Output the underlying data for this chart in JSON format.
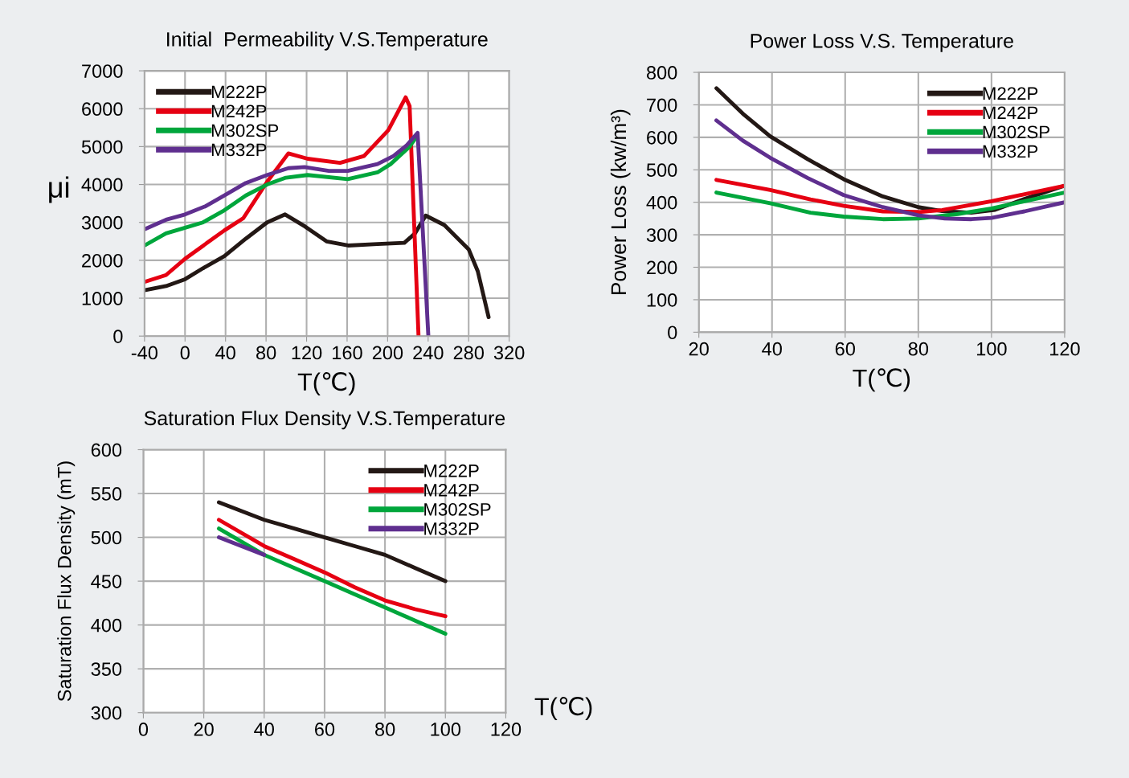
{
  "chart_data": [
    {
      "type": "line",
      "title": "Initial  Permeability V.S.Temperature",
      "xlabel": "T(℃)",
      "ylabel": "μi",
      "xlim": [
        -40,
        320
      ],
      "xticks": [
        -40,
        0,
        40,
        80,
        120,
        160,
        200,
        240,
        280,
        320
      ],
      "ylim": [
        0,
        7000
      ],
      "yticks": [
        0,
        1000,
        2000,
        3000,
        4000,
        5000,
        6000,
        7000
      ],
      "grid": true,
      "legend": "top left",
      "series": [
        {
          "name": "M222P",
          "color": "#231815",
          "x": [
            -40,
            -18.8,
            0,
            17.7,
            38.9,
            60,
            81,
            98.8,
            118.6,
            139.7,
            161,
            190,
            216.5,
            227,
            237.6,
            256,
            280,
            289,
            299.7
          ],
          "values": [
            1210,
            1320,
            1500,
            1790,
            2110,
            2570,
            3000,
            3210,
            2890,
            2500,
            2390,
            2430,
            2460,
            2710,
            3180,
            2930,
            2290,
            1710,
            500
          ]
        },
        {
          "name": "M242P",
          "color": "#e60012",
          "x": [
            -40,
            -18.8,
            0,
            38.9,
            57.5,
            81,
            102,
            121,
            153,
            176.7,
            200.6,
            217.8,
            221.7,
            230.5
          ],
          "values": [
            1430,
            1610,
            2040,
            2790,
            3110,
            4070,
            4820,
            4680,
            4570,
            4750,
            5430,
            6300,
            6070,
            0
          ]
        },
        {
          "name": "M302SP",
          "color": "#00a63c",
          "x": [
            -40,
            -18.8,
            0,
            17.7,
            38.9,
            60,
            81,
            99.6,
            121,
            160.6,
            190,
            203,
            221.7,
            228.3
          ],
          "values": [
            2390,
            2710,
            2860,
            3000,
            3320,
            3710,
            4000,
            4180,
            4250,
            4140,
            4320,
            4540,
            5000,
            5250
          ]
        },
        {
          "name": "M332P",
          "color": "#5f2f8f",
          "x": [
            -40,
            -18.8,
            0,
            20.5,
            38.9,
            60,
            81,
            102,
            118,
            142,
            160.6,
            190,
            205.8,
            219,
            229.6,
            240.2
          ],
          "values": [
            2820,
            3070,
            3210,
            3430,
            3710,
            4040,
            4250,
            4430,
            4460,
            4360,
            4360,
            4540,
            4750,
            5040,
            5360,
            0
          ]
        }
      ]
    },
    {
      "type": "line",
      "title": "Power Loss V.S. Temperature",
      "xlabel": "T(℃)",
      "ylabel": "Power Loss (kw/m³)",
      "xlim": [
        20,
        120
      ],
      "xticks": [
        20,
        40,
        60,
        80,
        100,
        120
      ],
      "ylim": [
        0,
        800
      ],
      "yticks": [
        0,
        100,
        200,
        300,
        400,
        500,
        600,
        700,
        800
      ],
      "grid": true,
      "legend": "top right",
      "series": [
        {
          "name": "M222P",
          "color": "#231815",
          "x": [
            24.8,
            32,
            39.5,
            49.7,
            59.6,
            70.3,
            80,
            86.5,
            94.5,
            101,
            109,
            120
          ],
          "values": [
            751,
            673,
            603,
            533,
            471,
            418,
            385,
            373,
            368,
            377,
            410,
            451
          ]
        },
        {
          "name": "M242P",
          "color": "#e60012",
          "x": [
            24.8,
            39.5,
            50.5,
            59.6,
            70.3,
            80,
            86.5,
            100,
            120
          ],
          "values": [
            469,
            438,
            409,
            389,
            372,
            370,
            376,
            403,
            451
          ]
        },
        {
          "name": "M302SP",
          "color": "#00a63c",
          "x": [
            24.8,
            39.5,
            50.5,
            59.6,
            70.3,
            80,
            90.8,
            100,
            120
          ],
          "values": [
            430,
            397,
            368,
            356,
            348,
            350,
            364,
            381,
            430
          ]
        },
        {
          "name": "M332P",
          "color": "#5f2f8f",
          "x": [
            24.8,
            32,
            39.5,
            49.7,
            59.6,
            70.3,
            80,
            87.2,
            94.5,
            100,
            109,
            120
          ],
          "values": [
            652,
            590,
            537,
            475,
            422,
            385,
            360,
            350,
            348,
            352,
            372,
            400
          ]
        }
      ]
    },
    {
      "type": "line",
      "title": "Saturation Flux Density V.S.Temperature",
      "xlabel": "T(℃)",
      "ylabel": "Saturation Flux Density (mT)",
      "xlim": [
        0,
        120
      ],
      "xticks": [
        0,
        20,
        40,
        60,
        80,
        100,
        120
      ],
      "ylim": [
        300,
        600
      ],
      "yticks": [
        300,
        350,
        400,
        450,
        500,
        550,
        600
      ],
      "grid": true,
      "legend": "top right",
      "series": [
        {
          "name": "M222P",
          "color": "#231815",
          "x": [
            25,
            40,
            50,
            60,
            70,
            80,
            90,
            100
          ],
          "values": [
            540,
            520,
            510,
            500,
            490,
            480,
            465,
            450
          ]
        },
        {
          "name": "M242P",
          "color": "#e60012",
          "x": [
            25,
            40,
            50,
            60,
            70,
            80,
            90,
            100
          ],
          "values": [
            520,
            490,
            475,
            460,
            443,
            428,
            418,
            410
          ]
        },
        {
          "name": "M302SP",
          "color": "#00a63c",
          "x": [
            25,
            40,
            50,
            60,
            70,
            80,
            90,
            100
          ],
          "values": [
            510,
            480,
            465,
            450,
            435,
            420,
            405,
            390
          ]
        },
        {
          "name": "M332P",
          "color": "#5f2f8f",
          "x": [
            25,
            40
          ],
          "values": [
            500,
            480
          ]
        }
      ]
    }
  ]
}
